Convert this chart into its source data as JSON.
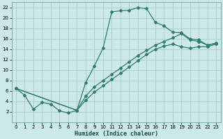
{
  "xlabel": "Humidex (Indice chaleur)",
  "bg_color": "#cce8e8",
  "grid_color": "#aacccc",
  "line_color": "#2e7d6e",
  "xlim": [
    -0.5,
    23.5
  ],
  "ylim": [
    0,
    23
  ],
  "xticks": [
    0,
    1,
    2,
    3,
    4,
    5,
    6,
    7,
    8,
    9,
    10,
    11,
    12,
    13,
    14,
    15,
    16,
    17,
    18,
    19,
    20,
    21,
    22,
    23
  ],
  "yticks": [
    2,
    4,
    6,
    8,
    10,
    12,
    14,
    16,
    18,
    20,
    22
  ],
  "line1_x": [
    0,
    1,
    2,
    3,
    4,
    5,
    6,
    7,
    8,
    9,
    10,
    11,
    12,
    13,
    14,
    15,
    16,
    17,
    18,
    19,
    20,
    21,
    22,
    23
  ],
  "line1_y": [
    6.5,
    5.2,
    2.5,
    3.8,
    3.5,
    2.2,
    1.8,
    2.3,
    7.6,
    10.8,
    14.2,
    21.2,
    21.4,
    21.5,
    22.0,
    21.8,
    19.2,
    18.5,
    17.3,
    17.2,
    16.0,
    15.8,
    14.8,
    15.2
  ],
  "line2_x": [
    0,
    7,
    8,
    9,
    10,
    11,
    12,
    13,
    14,
    15,
    16,
    17,
    18,
    19,
    20,
    21,
    22,
    23
  ],
  "line2_y": [
    6.5,
    2.3,
    5.0,
    6.8,
    8.0,
    9.2,
    10.4,
    11.6,
    12.8,
    13.8,
    14.8,
    15.5,
    16.2,
    17.0,
    15.8,
    15.5,
    14.8,
    15.2
  ],
  "line3_x": [
    0,
    7,
    8,
    9,
    10,
    11,
    12,
    13,
    14,
    15,
    16,
    17,
    18,
    19,
    20,
    21,
    22,
    23
  ],
  "line3_y": [
    6.5,
    2.3,
    4.2,
    5.8,
    7.0,
    8.2,
    9.4,
    10.6,
    11.8,
    13.0,
    14.0,
    14.6,
    15.0,
    14.5,
    14.2,
    14.5,
    14.5,
    15.0
  ]
}
